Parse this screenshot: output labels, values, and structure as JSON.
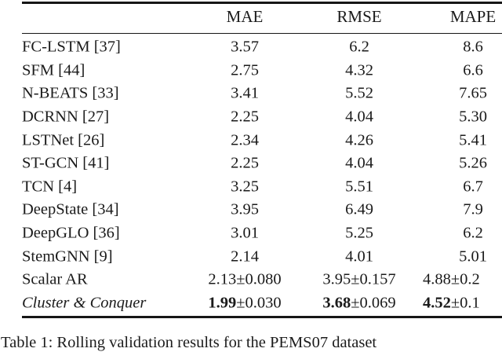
{
  "page": {
    "background": "#ffffff",
    "text_color": "#1b1b1b",
    "rule_color": "#161616"
  },
  "table": {
    "headers": [
      {
        "label": "MAE"
      },
      {
        "label": "RMSE"
      },
      {
        "label": "MAPE"
      }
    ],
    "rows": [
      {
        "name": "FC-LSTM [37]",
        "values": [
          "3.57",
          "6.2",
          "8.6"
        ]
      },
      {
        "name": "SFM [44]",
        "values": [
          "2.75",
          "4.32",
          "6.6"
        ]
      },
      {
        "name": "N-BEATS [33]",
        "values": [
          "3.41",
          "5.52",
          "7.65"
        ]
      },
      {
        "name": "DCRNN [27]",
        "values": [
          "2.25",
          "4.04",
          "5.30"
        ]
      },
      {
        "name": "LSTNet [26]",
        "values": [
          "2.34",
          "4.26",
          "5.41"
        ]
      },
      {
        "name": "ST-GCN [41]",
        "values": [
          "2.25",
          "4.04",
          "5.26"
        ]
      },
      {
        "name": "TCN [4]",
        "values": [
          "3.25",
          "5.51",
          "6.7"
        ]
      },
      {
        "name": "DeepState [34]",
        "values": [
          "3.95",
          "6.49",
          "7.9"
        ]
      },
      {
        "name": "DeepGLO [36]",
        "values": [
          "3.01",
          "5.25",
          "6.2"
        ]
      },
      {
        "name": "StemGNN [9]",
        "values": [
          "2.14",
          "4.01",
          "5.01"
        ]
      },
      {
        "name": "Scalar AR",
        "values": [
          "2.13±0.080",
          "3.95±0.157",
          "4.88±0.2"
        ],
        "mape_edge": true
      },
      {
        "name": "Cluster & Conquer",
        "name_style": "italic",
        "values": [
          {
            "main": "1.99",
            "err": "±0.030",
            "bold": true
          },
          {
            "main": "3.68",
            "err": "±0.069",
            "bold": true
          },
          {
            "main": "4.52",
            "err": "±0.1",
            "bold": true
          }
        ],
        "mape_edge": true
      }
    ]
  },
  "caption": {
    "text": "Table 1: Rolling validation results for the PEMS07 dataset"
  }
}
